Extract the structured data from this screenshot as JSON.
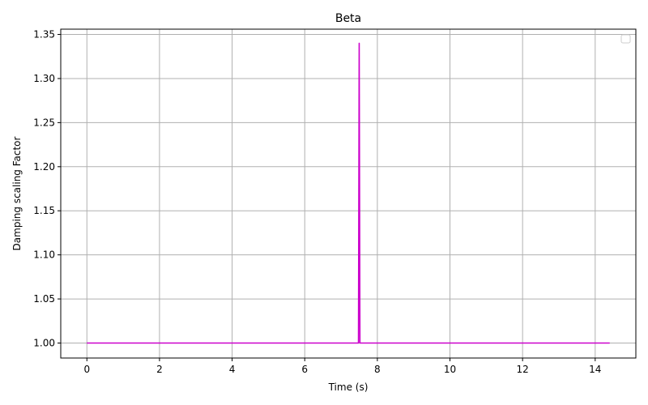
{
  "chart_data": {
    "type": "line",
    "title": "Beta",
    "xlabel": "Time (s)",
    "ylabel": "Damping scaling Factor",
    "xlim": [
      -0.72,
      15.12
    ],
    "ylim": [
      0.983,
      1.356
    ],
    "xticks": [
      0,
      2,
      4,
      6,
      8,
      10,
      12,
      14
    ],
    "yticks": [
      1.0,
      1.05,
      1.1,
      1.15,
      1.2,
      1.25,
      1.3,
      1.35
    ],
    "ytick_labels": [
      "1.00",
      "1.05",
      "1.10",
      "1.15",
      "1.20",
      "1.25",
      "1.30",
      "1.35"
    ],
    "grid": true,
    "legend": "top-right (empty)",
    "series": [
      {
        "color": "#cc00cc",
        "x": [
          0,
          7.46,
          7.48,
          7.5,
          7.52,
          7.54,
          14.4
        ],
        "y": [
          1.0,
          1.0,
          1.0,
          1.34,
          1.0,
          1.0,
          1.0
        ]
      }
    ]
  }
}
